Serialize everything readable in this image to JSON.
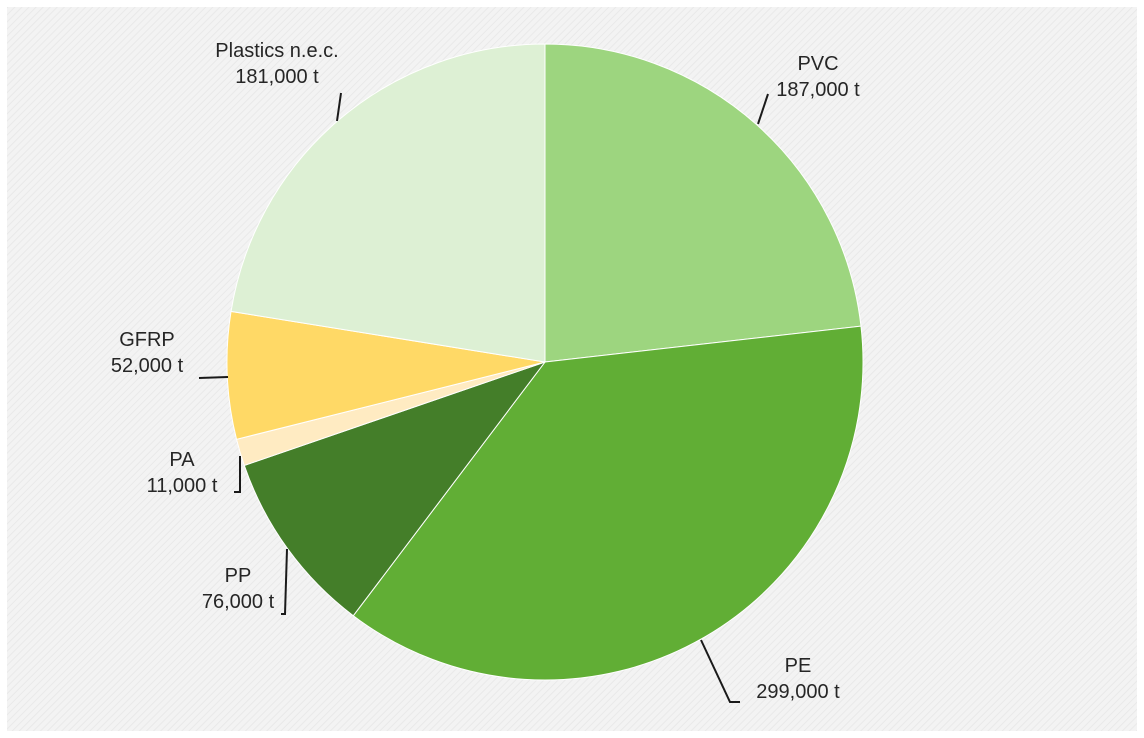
{
  "chart_data": {
    "type": "pie",
    "unit": "t",
    "slices": [
      {
        "name": "PVC",
        "value": 187000,
        "value_label": "187,000 t",
        "color": "#9dd57f"
      },
      {
        "name": "PE",
        "value": 299000,
        "value_label": "299,000 t",
        "color": "#61ae35"
      },
      {
        "name": "PP",
        "value": 76000,
        "value_label": "76,000 t",
        "color": "#447e29"
      },
      {
        "name": "PA",
        "value": 11000,
        "value_label": "11,000 t",
        "color": "#ffebc2"
      },
      {
        "name": "GFRP",
        "value": 52000,
        "value_label": "52,000 t",
        "color": "#ffd966"
      },
      {
        "name": "Plastics n.e.c.",
        "value": 181000,
        "value_label": "181,000 t",
        "color": "#ddf0d4"
      }
    ],
    "start": "12 o'clock",
    "direction": "clockwise",
    "legend": "none",
    "background_color": "#f2f2f2"
  }
}
